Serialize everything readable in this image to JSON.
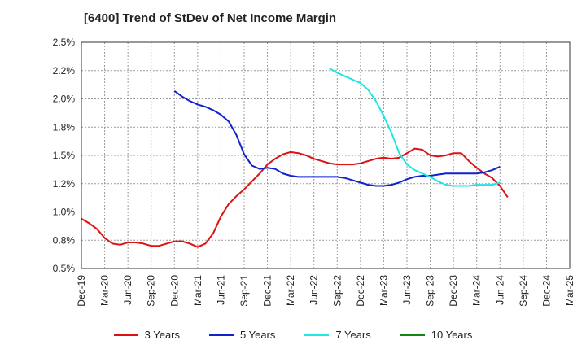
{
  "chart_data": {
    "type": "line",
    "title": "[6400]  Trend of StDev of Net Income Margin",
    "ylim": [
      0.005,
      0.025
    ],
    "y_ticks": [
      0.005,
      0.0075,
      0.01,
      0.0125,
      0.015,
      0.0175,
      0.02,
      0.0225,
      0.025
    ],
    "y_tick_labels": [
      "0.5%",
      "0.8%",
      "1.0%",
      "1.2%",
      "1.5%",
      "1.8%",
      "2.0%",
      "2.2%",
      "2.5%"
    ],
    "x_tick_labels": [
      "Dec-19",
      "Mar-20",
      "Jun-20",
      "Sep-20",
      "Dec-20",
      "Mar-21",
      "Jun-21",
      "Sep-21",
      "Dec-21",
      "Mar-22",
      "Jun-22",
      "Sep-22",
      "Dec-22",
      "Mar-23",
      "Jun-23",
      "Sep-23",
      "Dec-23",
      "Mar-24",
      "Jun-24",
      "Sep-24",
      "Dec-24",
      "Mar-25"
    ],
    "grid": true,
    "legend_position": "bottom",
    "series": [
      {
        "name": "3 Years",
        "color": "#dd1111",
        "start": 0,
        "values": [
          0.0094,
          0.009,
          0.0085,
          0.0077,
          0.0072,
          0.0071,
          0.0073,
          0.0073,
          0.0072,
          0.007,
          0.007,
          0.0072,
          0.0074,
          0.0074,
          0.0072,
          0.0069,
          0.0072,
          0.0081,
          0.0096,
          0.0107,
          0.0114,
          0.012,
          0.0127,
          0.0134,
          0.0142,
          0.0147,
          0.0151,
          0.0153,
          0.0152,
          0.015,
          0.0147,
          0.0145,
          0.0143,
          0.0142,
          0.0142,
          0.0142,
          0.0143,
          0.0145,
          0.0147,
          0.0148,
          0.0147,
          0.0148,
          0.0152,
          0.0156,
          0.0155,
          0.015,
          0.0149,
          0.015,
          0.0152,
          0.0152,
          0.0145,
          0.0139,
          0.0134,
          0.013,
          0.0123,
          0.0113
        ]
      },
      {
        "name": "5 Years",
        "color": "#1122cc",
        "start": 12,
        "values": [
          0.0207,
          0.0202,
          0.0198,
          0.0195,
          0.0193,
          0.019,
          0.0186,
          0.018,
          0.0168,
          0.0151,
          0.0141,
          0.0138,
          0.0139,
          0.0138,
          0.0134,
          0.0132,
          0.0131,
          0.0131,
          0.0131,
          0.0131,
          0.0131,
          0.0131,
          0.013,
          0.0128,
          0.0126,
          0.0124,
          0.0123,
          0.0123,
          0.0124,
          0.0126,
          0.0129,
          0.0131,
          0.0132,
          0.0132,
          0.0133,
          0.0134,
          0.0134,
          0.0134,
          0.0134,
          0.0134,
          0.0135,
          0.0137,
          0.014
        ]
      },
      {
        "name": "7 Years",
        "color": "#22e5e5",
        "start": 32,
        "values": [
          0.0227,
          0.0223,
          0.022,
          0.0217,
          0.0214,
          0.0208,
          0.0198,
          0.0185,
          0.017,
          0.0152,
          0.0142,
          0.0137,
          0.0134,
          0.0131,
          0.0127,
          0.0124,
          0.0123,
          0.0123,
          0.0123,
          0.0124,
          0.0124,
          0.0124,
          0.0126
        ]
      },
      {
        "name": "10 Years",
        "color": "#118811",
        "start": 0,
        "values": []
      }
    ]
  }
}
